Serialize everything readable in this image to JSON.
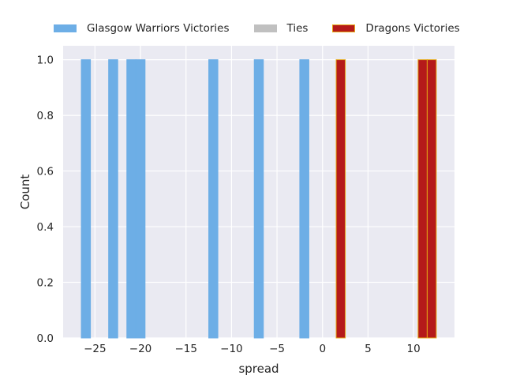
{
  "chart_data": {
    "type": "bar",
    "xlabel": "spread",
    "ylabel": "Count",
    "xlim": [
      -28.5,
      14.5
    ],
    "ylim": [
      0,
      1.05
    ],
    "xticks": [
      -25,
      -20,
      -15,
      -10,
      -5,
      0,
      5,
      10
    ],
    "xtick_labels": [
      "−25",
      "−20",
      "−15",
      "−10",
      "−5",
      "0",
      "5",
      "10"
    ],
    "yticks": [
      0.0,
      0.2,
      0.4,
      0.6,
      0.8,
      1.0
    ],
    "ytick_labels": [
      "0.0",
      "0.2",
      "0.4",
      "0.6",
      "0.8",
      "1.0"
    ],
    "grid": true,
    "legend_position": "top",
    "bin_width": 1,
    "series": [
      {
        "name": "Glasgow Warriors Victories",
        "color": "#6daee6",
        "edge": "#6daee6",
        "x": [
          -26,
          -23,
          -21,
          -20,
          -12,
          -7,
          -2
        ],
        "values": [
          1,
          1,
          1,
          1,
          1,
          1,
          1
        ]
      },
      {
        "name": "Ties",
        "color": "#c0c0c0",
        "edge": "#c0c0c0",
        "x": [],
        "values": []
      },
      {
        "name": "Dragons Victories",
        "color": "#b51a1a",
        "edge": "#e6a817",
        "x": [
          2,
          11,
          12
        ],
        "values": [
          1,
          1,
          1
        ]
      }
    ]
  }
}
